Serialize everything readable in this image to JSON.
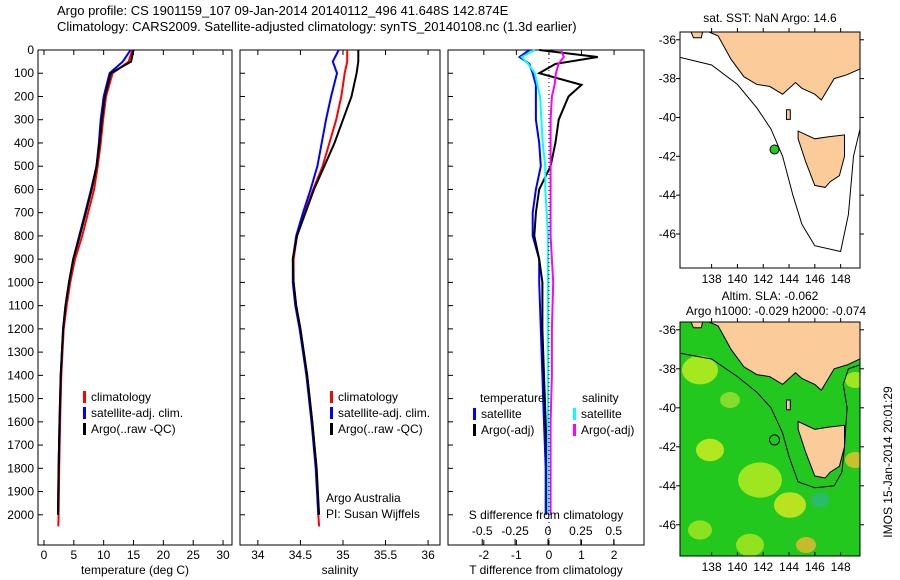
{
  "title": {
    "line1": "Argo profile: CS 1901159_107 09-Jan-2014 20140112_496 41.648S 142.874E",
    "line2": "Climatology: CARS2009. Satellite-adjusted climatology: synTS_20140108.nc (1.3d earlier)"
  },
  "colors": {
    "climatology": "#ff0000",
    "satellite": "#0000ff",
    "argo": "#000000",
    "sal_satellite": "#00ffff",
    "sal_argo": "#ff00ff",
    "land": "#fbcb9a",
    "float": "#22cc22"
  },
  "annotations": {
    "argo_australia": "Argo Australia",
    "pi": "PI: Susan Wijffels",
    "imos": "IMOS 15-Jan-2014 20:01:29"
  },
  "chart_data": [
    {
      "type": "line",
      "name": "temperature",
      "xlabel": "temperature (deg C)",
      "ylabel": "",
      "xlim": [
        -1,
        31.5
      ],
      "ylim": [
        0,
        2130
      ],
      "xticks": [
        0,
        5,
        10,
        15,
        20,
        25,
        30
      ],
      "yticks": [
        0,
        100,
        200,
        300,
        400,
        500,
        600,
        700,
        800,
        900,
        1000,
        1100,
        1200,
        1300,
        1400,
        1500,
        1600,
        1700,
        1800,
        1900,
        2000
      ],
      "legend": [
        "climatology",
        "satellite-adj. clim.",
        "Argo(..raw -QC)"
      ],
      "depth": [
        0,
        50,
        100,
        200,
        300,
        400,
        500,
        600,
        700,
        800,
        900,
        1000,
        1100,
        1200,
        1400,
        1600,
        1800,
        2000,
        2050
      ],
      "series": [
        {
          "name": "climatology",
          "color": "#ff0000",
          "values": [
            14.8,
            14.2,
            11.5,
            10.4,
            9.9,
            9.5,
            9.0,
            8.4,
            7.4,
            6.4,
            5.2,
            4.4,
            3.8,
            3.3,
            2.9,
            2.7,
            2.55,
            2.45,
            2.4
          ]
        },
        {
          "name": "satellite-adj. clim.",
          "color": "#0000ff",
          "values": [
            14.5,
            13.2,
            11.0,
            10.0,
            9.5,
            9.2,
            8.8,
            7.9,
            6.9,
            5.9,
            4.9,
            4.2,
            3.6,
            3.2,
            2.8,
            2.6,
            2.45,
            2.35,
            null
          ]
        },
        {
          "name": "Argo(..raw -QC)",
          "color": "#000000",
          "values": [
            15.0,
            14.6,
            11.2,
            10.2,
            9.7,
            9.3,
            8.8,
            8.0,
            7.0,
            6.0,
            4.9,
            4.2,
            3.6,
            3.2,
            2.8,
            2.6,
            2.45,
            2.35,
            null
          ]
        }
      ]
    },
    {
      "type": "line",
      "name": "salinity",
      "xlabel": "salinity",
      "xlim": [
        33.79,
        36.14
      ],
      "ylim": [
        0,
        2130
      ],
      "xticks": [
        34,
        34.5,
        35,
        35.5,
        36
      ],
      "legend": [
        "climatology",
        "satellite-adj. clim.",
        "Argo(..raw -QC)"
      ],
      "depth": [
        0,
        50,
        100,
        200,
        300,
        400,
        500,
        600,
        700,
        800,
        900,
        1000,
        1100,
        1200,
        1400,
        1600,
        1800,
        2000,
        2050
      ],
      "series": [
        {
          "name": "climatology",
          "color": "#ff0000",
          "values": [
            35.05,
            35.05,
            35.02,
            34.98,
            34.92,
            34.84,
            34.76,
            34.65,
            34.55,
            34.46,
            34.42,
            34.42,
            34.45,
            34.5,
            34.58,
            34.64,
            34.69,
            34.71,
            34.72
          ]
        },
        {
          "name": "satellite-adj. clim.",
          "color": "#0000ff",
          "values": [
            34.95,
            34.88,
            34.93,
            34.86,
            34.8,
            34.75,
            34.7,
            34.62,
            34.53,
            34.45,
            34.41,
            34.41,
            34.44,
            34.49,
            34.57,
            34.63,
            34.68,
            34.71,
            null
          ]
        },
        {
          "name": "Argo(..raw -QC)",
          "color": "#000000",
          "values": [
            35.18,
            35.18,
            35.16,
            35.1,
            35.0,
            34.9,
            34.78,
            34.66,
            34.56,
            34.46,
            34.41,
            34.42,
            34.45,
            34.5,
            34.58,
            34.64,
            34.69,
            34.72,
            null
          ]
        }
      ],
      "annotation": [
        "Argo Australia",
        "PI: Susan Wijffels"
      ]
    },
    {
      "type": "line",
      "name": "differences",
      "xlabel": "T difference from climatology",
      "x2label": "S difference from climatology",
      "xlim": [
        -3.1,
        2.92
      ],
      "x2lim": [
        -0.76,
        0.73
      ],
      "ylim": [
        0,
        2130
      ],
      "xticks": [
        -2,
        -1,
        0,
        1,
        2
      ],
      "x2ticks": [
        -0.5,
        -0.25,
        0,
        0.25,
        0.5
      ],
      "legend_headers": [
        "temperature",
        "salinity"
      ],
      "legend": [
        "satellite",
        "Argo(-adj)",
        "satellite",
        "Argo(-adj)"
      ],
      "depth": [
        0,
        30,
        60,
        100,
        150,
        200,
        300,
        400,
        500,
        600,
        700,
        800,
        900,
        1000,
        1200,
        1400,
        1600,
        1800,
        2000
      ],
      "series": [
        {
          "name": "T satellite",
          "color": "#0000ff",
          "axis": "T",
          "values": [
            -0.6,
            -0.9,
            -0.6,
            -0.5,
            -0.4,
            -0.4,
            -0.4,
            -0.3,
            -0.25,
            -0.4,
            -0.5,
            -0.5,
            -0.3,
            -0.3,
            -0.25,
            -0.2,
            -0.15,
            -0.1,
            -0.1
          ]
        },
        {
          "name": "T Argo(-adj)",
          "color": "#000000",
          "axis": "T",
          "values": [
            -0.3,
            1.5,
            0.2,
            -0.3,
            1.0,
            0.6,
            0.3,
            0.2,
            0.05,
            -0.3,
            -0.4,
            -0.45,
            -0.3,
            -0.2,
            -0.2,
            -0.15,
            -0.1,
            -0.05,
            -0.05
          ]
        },
        {
          "name": "S satellite",
          "color": "#00ffff",
          "axis": "S",
          "values": [
            -0.1,
            -0.2,
            -0.15,
            -0.1,
            -0.08,
            -0.06,
            -0.05,
            -0.04,
            -0.02,
            -0.02,
            -0.01,
            0,
            0,
            0,
            0,
            0,
            0,
            0,
            0
          ]
        },
        {
          "name": "S Argo(-adj)",
          "color": "#ff00ff",
          "axis": "S",
          "values": [
            0.1,
            0.12,
            0.08,
            0.06,
            0.05,
            0.03,
            0.02,
            0.02,
            0.02,
            0.02,
            0.02,
            0.02,
            0.03,
            0.04,
            0.03,
            0.03,
            0.02,
            0.02,
            0.02
          ]
        }
      ]
    },
    {
      "type": "map",
      "name": "sst-map",
      "title": "sat. SST: NaN Argo: 14.6",
      "xlim": [
        135.55,
        149.5
      ],
      "ylim": [
        -47.75,
        -35.6
      ],
      "xticks": [
        138,
        140,
        142,
        144,
        146,
        148
      ],
      "yticks": [
        -36,
        -38,
        -40,
        -42,
        -44,
        -46
      ],
      "float": [
        142.874,
        -41.648
      ]
    },
    {
      "type": "map",
      "name": "sla-map",
      "title": "Altim. SLA: -0.062",
      "subtitle": "Argo h1000: -0.029 h2000: -0.074",
      "xlim": [
        135.55,
        149.5
      ],
      "ylim": [
        -47.6,
        -35.6
      ],
      "xticks": [
        138,
        140,
        142,
        144,
        146,
        148
      ],
      "yticks": [
        -36,
        -38,
        -40,
        -42,
        -44,
        -46
      ],
      "float": [
        142.874,
        -41.648
      ]
    }
  ],
  "coast": {
    "mainland": [
      [
        137.8,
        -35.6
      ],
      [
        138.5,
        -35.8
      ],
      [
        139.5,
        -37
      ],
      [
        140.5,
        -37.9
      ],
      [
        141.5,
        -38.3
      ],
      [
        142.5,
        -38.4
      ],
      [
        143.5,
        -38.8
      ],
      [
        144.5,
        -38.2
      ],
      [
        145,
        -38.5
      ],
      [
        146,
        -38.8
      ],
      [
        146.5,
        -39.1
      ],
      [
        147.5,
        -38
      ],
      [
        148.5,
        -37.8
      ],
      [
        149.5,
        -37.5
      ],
      [
        149.5,
        -35.6
      ]
    ],
    "kangaroo": [
      [
        136.4,
        -35.6
      ],
      [
        137.3,
        -35.6
      ],
      [
        137.2,
        -35.9
      ],
      [
        136.6,
        -35.9
      ]
    ],
    "tasmania": [
      [
        144.7,
        -40.7
      ],
      [
        146,
        -41.1
      ],
      [
        147,
        -41
      ],
      [
        148.3,
        -40.9
      ],
      [
        148.3,
        -42
      ],
      [
        147.9,
        -43
      ],
      [
        147.2,
        -43.3
      ],
      [
        146.8,
        -43.6
      ],
      [
        146,
        -43.5
      ],
      [
        145.3,
        -42.3
      ],
      [
        144.7,
        -41.1
      ]
    ],
    "king": [
      [
        143.8,
        -39.6
      ],
      [
        144.1,
        -39.6
      ],
      [
        144.1,
        -40.1
      ],
      [
        143.8,
        -40.1
      ]
    ],
    "contour1": [
      [
        135.55,
        -36.9
      ],
      [
        138,
        -37.3
      ],
      [
        140,
        -38.3
      ],
      [
        141.5,
        -39.5
      ],
      [
        142.6,
        -40.6
      ],
      [
        143.5,
        -42
      ],
      [
        144.3,
        -44
      ],
      [
        145,
        -45.5
      ],
      [
        146,
        -46.6
      ],
      [
        148,
        -46.9
      ],
      [
        148.6,
        -45
      ],
      [
        149,
        -42
      ],
      [
        149.5,
        -40.6
      ]
    ],
    "contour2": [
      [
        135.55,
        -37.2
      ],
      [
        138,
        -37.5
      ],
      [
        140,
        -38.4
      ],
      [
        141.5,
        -39.2
      ],
      [
        142.6,
        -40
      ],
      [
        143.5,
        -41.3
      ],
      [
        144,
        -42.5
      ],
      [
        144.7,
        -43.8
      ],
      [
        146,
        -44.1
      ],
      [
        147.5,
        -44
      ],
      [
        148.1,
        -43.3
      ],
      [
        148.3,
        -42
      ],
      [
        148.5,
        -40
      ],
      [
        148.2,
        -38.8
      ],
      [
        148.6,
        -38
      ],
      [
        149.5,
        -37.8
      ]
    ]
  }
}
